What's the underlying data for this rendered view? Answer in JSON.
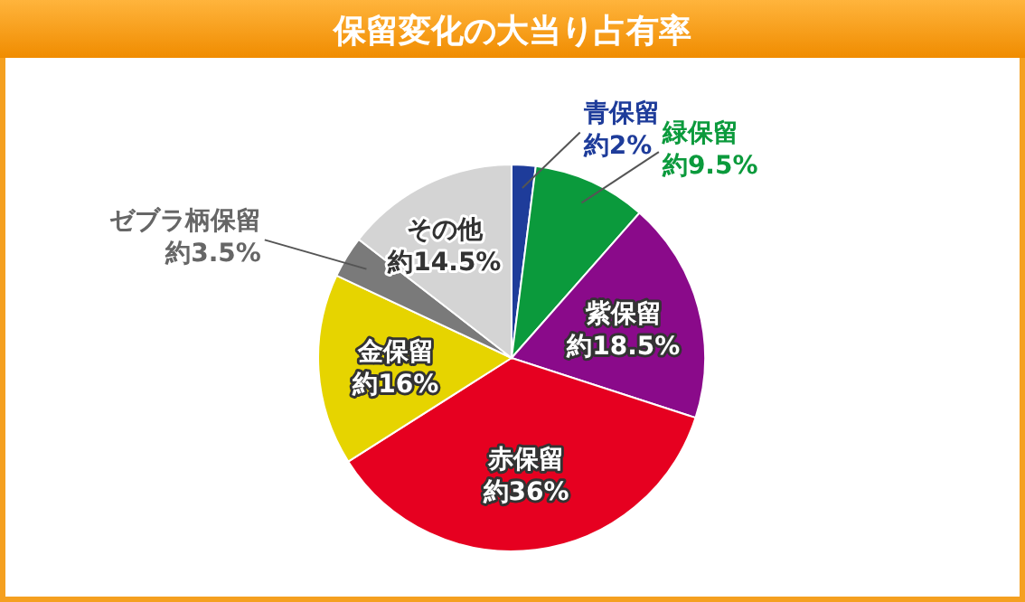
{
  "chart_data": {
    "type": "pie",
    "title": "保留変化の大当り占有率",
    "categories": [
      "青保留",
      "緑保留",
      "紫保留",
      "赤保留",
      "金保留",
      "ゼブラ柄保留",
      "その他"
    ],
    "values": [
      2,
      9.5,
      18.5,
      36,
      16,
      3.5,
      14.5
    ],
    "colors": [
      "#1e3c9a",
      "#0b9a3c",
      "#8a0a8a",
      "#e60020",
      "#e6d400",
      "#7a7a7a",
      "#d4d4d4"
    ],
    "value_labels": [
      "約2%",
      "約9.5%",
      "約18.5%",
      "約36%",
      "約16%",
      "約3.5%",
      "約14.5%"
    ],
    "legend": false
  }
}
